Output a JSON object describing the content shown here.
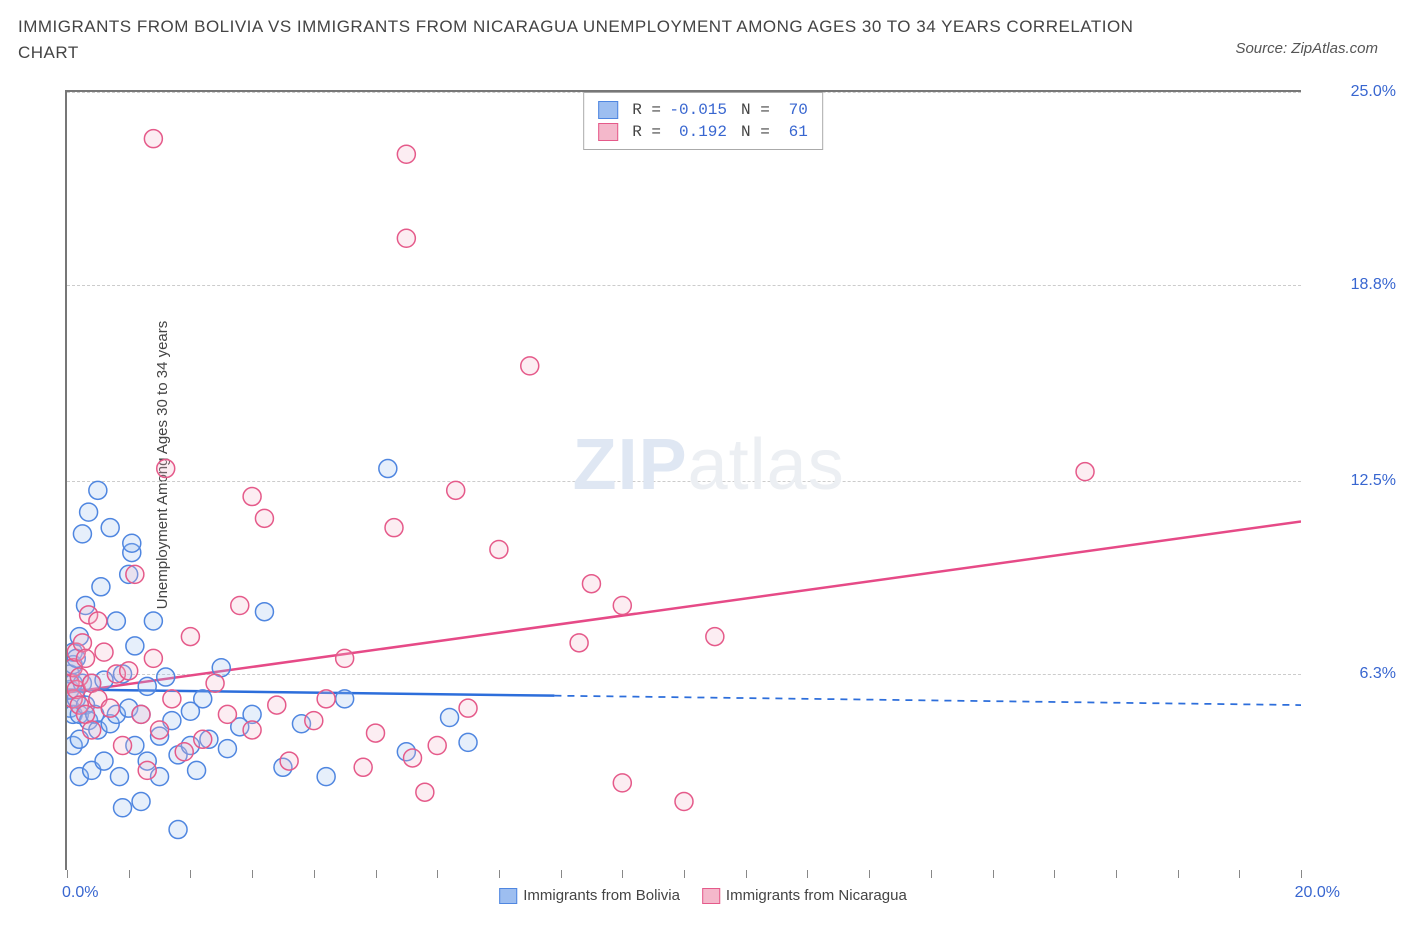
{
  "title": "IMMIGRANTS FROM BOLIVIA VS IMMIGRANTS FROM NICARAGUA UNEMPLOYMENT AMONG AGES 30 TO 34 YEARS CORRELATION CHART",
  "source": "Source: ZipAtlas.com",
  "watermark_zip": "ZIP",
  "watermark_atlas": "atlas",
  "y_label": "Unemployment Among Ages 30 to 34 years",
  "chart": {
    "type": "scatter",
    "xlim": [
      0,
      20
    ],
    "ylim": [
      0,
      25
    ],
    "x_tick_step": 1,
    "x_min_label": "0.0%",
    "x_max_label": "20.0%",
    "y_ticks": [
      {
        "v": 6.3,
        "label": "6.3%"
      },
      {
        "v": 12.5,
        "label": "12.5%"
      },
      {
        "v": 18.8,
        "label": "18.8%"
      },
      {
        "v": 25.0,
        "label": "25.0%"
      }
    ],
    "background_color": "#ffffff",
    "grid_color": "#cccccc",
    "marker_radius": 9,
    "marker_stroke_width": 1.5,
    "series": [
      {
        "name": "Immigrants from Bolivia",
        "fill": "#9dbef0",
        "stroke": "#4f86e0",
        "R": "-0.015",
        "N": "70",
        "trend": {
          "y_at_x0": 5.8,
          "y_at_x20": 5.3,
          "solid_until_x": 7.9,
          "color": "#2d6edb",
          "width": 2.5
        },
        "points": [
          [
            0.05,
            5.8
          ],
          [
            0.05,
            6.3
          ],
          [
            0.05,
            5.2
          ],
          [
            0.1,
            6.0
          ],
          [
            0.1,
            6.6
          ],
          [
            0.1,
            7.0
          ],
          [
            0.1,
            5.0
          ],
          [
            0.1,
            4.0
          ],
          [
            0.15,
            5.5
          ],
          [
            0.15,
            6.8
          ],
          [
            0.2,
            5.0
          ],
          [
            0.2,
            7.5
          ],
          [
            0.2,
            4.2
          ],
          [
            0.2,
            3.0
          ],
          [
            0.25,
            6.0
          ],
          [
            0.25,
            10.8
          ],
          [
            0.3,
            5.3
          ],
          [
            0.3,
            8.5
          ],
          [
            0.35,
            11.5
          ],
          [
            0.35,
            4.8
          ],
          [
            0.4,
            6.0
          ],
          [
            0.4,
            3.2
          ],
          [
            0.45,
            5.0
          ],
          [
            0.5,
            12.2
          ],
          [
            0.5,
            4.5
          ],
          [
            0.55,
            9.1
          ],
          [
            0.6,
            3.5
          ],
          [
            0.6,
            6.1
          ],
          [
            0.7,
            11.0
          ],
          [
            0.7,
            4.7
          ],
          [
            0.8,
            8.0
          ],
          [
            0.8,
            5.0
          ],
          [
            0.85,
            3.0
          ],
          [
            0.9,
            6.3
          ],
          [
            0.9,
            2.0
          ],
          [
            1.0,
            5.2
          ],
          [
            1.0,
            9.5
          ],
          [
            1.05,
            10.2
          ],
          [
            1.05,
            10.5
          ],
          [
            1.1,
            4.0
          ],
          [
            1.1,
            7.2
          ],
          [
            1.2,
            5.0
          ],
          [
            1.2,
            2.2
          ],
          [
            1.3,
            3.5
          ],
          [
            1.3,
            5.9
          ],
          [
            1.4,
            8.0
          ],
          [
            1.5,
            4.3
          ],
          [
            1.5,
            3.0
          ],
          [
            1.6,
            6.2
          ],
          [
            1.7,
            4.8
          ],
          [
            1.8,
            3.7
          ],
          [
            1.8,
            1.3
          ],
          [
            2.0,
            5.1
          ],
          [
            2.0,
            4.0
          ],
          [
            2.1,
            3.2
          ],
          [
            2.2,
            5.5
          ],
          [
            2.3,
            4.2
          ],
          [
            2.5,
            6.5
          ],
          [
            2.6,
            3.9
          ],
          [
            2.8,
            4.6
          ],
          [
            3.0,
            5.0
          ],
          [
            3.2,
            8.3
          ],
          [
            3.5,
            3.3
          ],
          [
            3.8,
            4.7
          ],
          [
            4.2,
            3.0
          ],
          [
            4.5,
            5.5
          ],
          [
            5.2,
            12.9
          ],
          [
            5.5,
            3.8
          ],
          [
            6.5,
            4.1
          ],
          [
            6.2,
            4.9
          ]
        ]
      },
      {
        "name": "Immigrants from Nicaragua",
        "fill": "#f4b8cb",
        "stroke": "#e55a8a",
        "R": "0.192",
        "N": "61",
        "trend": {
          "y_at_x0": 5.7,
          "y_at_x20": 11.2,
          "solid_until_x": 20,
          "color": "#e64a87",
          "width": 2.5
        },
        "points": [
          [
            0.05,
            6.0
          ],
          [
            0.1,
            5.5
          ],
          [
            0.1,
            6.5
          ],
          [
            0.15,
            5.8
          ],
          [
            0.15,
            7.0
          ],
          [
            0.2,
            5.3
          ],
          [
            0.2,
            6.2
          ],
          [
            0.25,
            7.3
          ],
          [
            0.3,
            5.0
          ],
          [
            0.3,
            6.8
          ],
          [
            0.35,
            8.2
          ],
          [
            0.4,
            4.5
          ],
          [
            0.4,
            6.0
          ],
          [
            0.5,
            8.0
          ],
          [
            0.5,
            5.5
          ],
          [
            0.6,
            7.0
          ],
          [
            0.7,
            5.2
          ],
          [
            0.8,
            6.3
          ],
          [
            0.9,
            4.0
          ],
          [
            1.0,
            6.4
          ],
          [
            1.1,
            9.5
          ],
          [
            1.2,
            5.0
          ],
          [
            1.3,
            3.2
          ],
          [
            1.4,
            6.8
          ],
          [
            1.5,
            4.5
          ],
          [
            1.6,
            12.9
          ],
          [
            1.7,
            5.5
          ],
          [
            1.9,
            3.8
          ],
          [
            2.0,
            7.5
          ],
          [
            2.2,
            4.2
          ],
          [
            2.4,
            6.0
          ],
          [
            2.6,
            5.0
          ],
          [
            2.8,
            8.5
          ],
          [
            3.0,
            4.5
          ],
          [
            3.0,
            12.0
          ],
          [
            3.2,
            11.3
          ],
          [
            3.4,
            5.3
          ],
          [
            3.6,
            3.5
          ],
          [
            4.0,
            4.8
          ],
          [
            4.2,
            5.5
          ],
          [
            4.5,
            6.8
          ],
          [
            4.8,
            3.3
          ],
          [
            5.0,
            4.4
          ],
          [
            5.3,
            11.0
          ],
          [
            5.5,
            20.3
          ],
          [
            5.5,
            23.0
          ],
          [
            5.6,
            3.6
          ],
          [
            5.8,
            2.5
          ],
          [
            6.0,
            4.0
          ],
          [
            6.3,
            12.2
          ],
          [
            6.5,
            5.2
          ],
          [
            7.0,
            10.3
          ],
          [
            7.5,
            16.2
          ],
          [
            8.3,
            7.3
          ],
          [
            8.5,
            9.2
          ],
          [
            9.0,
            2.8
          ],
          [
            9.0,
            8.5
          ],
          [
            10.0,
            2.2
          ],
          [
            10.5,
            7.5
          ],
          [
            16.5,
            12.8
          ],
          [
            1.4,
            23.5
          ]
        ]
      }
    ]
  },
  "legend_top": {
    "label_R": "R =",
    "label_N": "N ="
  },
  "colors": {
    "title": "#444444",
    "axis_label": "#3866d0",
    "text": "#444444"
  }
}
